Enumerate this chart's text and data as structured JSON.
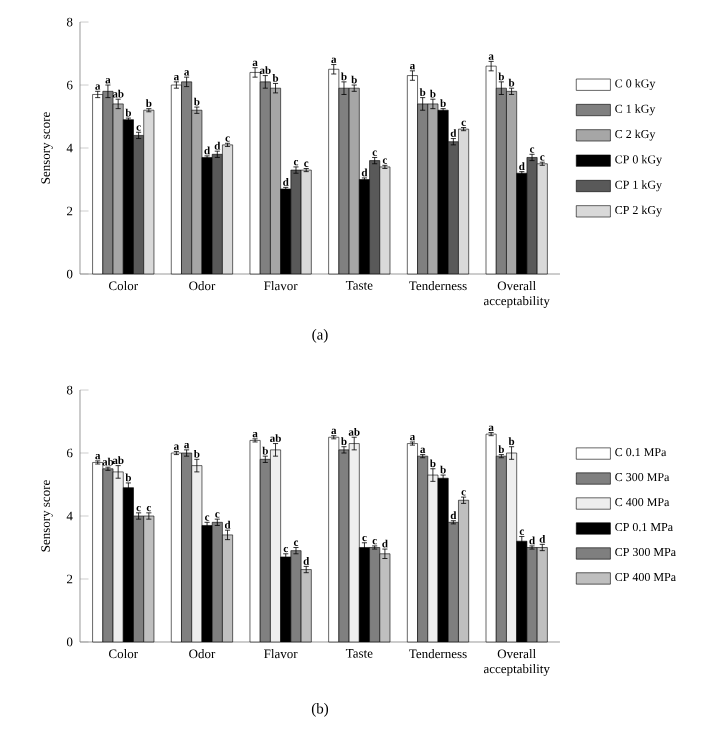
{
  "chart_data": [
    {
      "type": "bar",
      "ylabel": "Sensory score",
      "categories": [
        "Color",
        "Odor",
        "Flavor",
        "Taste",
        "Tenderness",
        "Overall acceptability"
      ],
      "ylim": [
        0,
        8
      ],
      "yticks": [
        0,
        2,
        4,
        6,
        8
      ],
      "legend": "right",
      "annotations": [
        "(a)"
      ],
      "series": [
        {
          "name": "C 0 kGy",
          "color": "#ffffff",
          "values": [
            5.7,
            6.0,
            6.4,
            6.5,
            6.3,
            6.6
          ],
          "errors": [
            0.1,
            0.1,
            0.15,
            0.15,
            0.15,
            0.15
          ],
          "value_labels": [
            "a",
            "a",
            "a",
            "a",
            "a",
            "a"
          ]
        },
        {
          "name": "C 1 kGy",
          "color": "#808080",
          "values": [
            5.8,
            6.1,
            6.1,
            5.9,
            5.4,
            5.9
          ],
          "errors": [
            0.2,
            0.15,
            0.2,
            0.2,
            0.2,
            0.2
          ],
          "value_labels": [
            "a",
            "a",
            "ab",
            "b",
            "b",
            "b"
          ]
        },
        {
          "name": "C 2 kGy",
          "color": "#a6a6a6",
          "values": [
            5.4,
            5.2,
            5.9,
            5.9,
            5.4,
            5.8
          ],
          "errors": [
            0.15,
            0.1,
            0.15,
            0.1,
            0.15,
            0.1
          ],
          "value_labels": [
            "ab",
            "b",
            "b",
            "b",
            "b",
            "b"
          ]
        },
        {
          "name": "CP 0 kGy",
          "color": "#000000",
          "values": [
            4.9,
            3.7,
            2.7,
            3.0,
            5.2,
            3.2
          ],
          "errors": [
            0.05,
            0.05,
            0.05,
            0.05,
            0.05,
            0.05
          ],
          "value_labels": [
            "b",
            "d",
            "d",
            "d",
            "b",
            "d"
          ]
        },
        {
          "name": "CP 1 kGy",
          "color": "#595959",
          "values": [
            4.4,
            3.8,
            3.3,
            3.6,
            4.2,
            3.7
          ],
          "errors": [
            0.1,
            0.1,
            0.1,
            0.1,
            0.1,
            0.1
          ],
          "value_labels": [
            "c",
            "d",
            "c",
            "c",
            "d",
            "c"
          ]
        },
        {
          "name": "CP 2 kGy",
          "color": "#d9d9d9",
          "values": [
            5.2,
            4.1,
            3.3,
            3.4,
            4.6,
            3.5
          ],
          "errors": [
            0.05,
            0.05,
            0.05,
            0.05,
            0.05,
            0.05
          ],
          "value_labels": [
            "b",
            "c",
            "c",
            "c",
            "c",
            "c"
          ]
        }
      ]
    },
    {
      "type": "bar",
      "ylabel": "Sensory score",
      "categories": [
        "Color",
        "Odor",
        "Flavor",
        "Taste",
        "Tenderness",
        "Overall acceptability"
      ],
      "ylim": [
        0,
        8
      ],
      "yticks": [
        0,
        2,
        4,
        6,
        8
      ],
      "legend": "right",
      "annotations": [
        "(b)"
      ],
      "series": [
        {
          "name": "C 0.1 MPa",
          "color": "#ffffff",
          "values": [
            5.7,
            6.0,
            6.4,
            6.5,
            6.3,
            6.6
          ],
          "errors": [
            0.05,
            0.05,
            0.05,
            0.05,
            0.05,
            0.05
          ],
          "value_labels": [
            "a",
            "a",
            "a",
            "a",
            "a",
            "a"
          ]
        },
        {
          "name": "C 300 MPa",
          "color": "#808080",
          "values": [
            5.5,
            6.0,
            5.8,
            6.1,
            5.9,
            5.9
          ],
          "errors": [
            0.05,
            0.1,
            0.1,
            0.1,
            0.05,
            0.05
          ],
          "value_labels": [
            "ab",
            "a",
            "b",
            "b",
            "a",
            "b"
          ]
        },
        {
          "name": "C 400 MPa",
          "color": "#eeeeee",
          "values": [
            5.4,
            5.6,
            6.1,
            6.3,
            5.3,
            6.0
          ],
          "errors": [
            0.2,
            0.2,
            0.2,
            0.2,
            0.2,
            0.2
          ],
          "value_labels": [
            "ab",
            "b",
            "ab",
            "ab",
            "b",
            "b"
          ]
        },
        {
          "name": "CP 0.1 MPa",
          "color": "#000000",
          "values": [
            4.9,
            3.7,
            2.7,
            3.0,
            5.2,
            3.2
          ],
          "errors": [
            0.15,
            0.1,
            0.1,
            0.15,
            0.1,
            0.15
          ],
          "value_labels": [
            "b",
            "c",
            "c",
            "c",
            "b",
            "c"
          ]
        },
        {
          "name": "CP 300 MPa",
          "color": "#7f7f7f",
          "values": [
            4.0,
            3.8,
            2.9,
            3.0,
            3.8,
            3.0
          ],
          "errors": [
            0.1,
            0.1,
            0.1,
            0.05,
            0.05,
            0.05
          ],
          "value_labels": [
            "c",
            "c",
            "c",
            "c",
            "d",
            "d"
          ]
        },
        {
          "name": "CP 400 MPa",
          "color": "#bfbfbf",
          "values": [
            4.0,
            3.4,
            2.3,
            2.8,
            4.5,
            3.0
          ],
          "errors": [
            0.1,
            0.15,
            0.1,
            0.15,
            0.1,
            0.1
          ],
          "value_labels": [
            "c",
            "d",
            "d",
            "d",
            "c",
            "d"
          ]
        }
      ]
    }
  ]
}
